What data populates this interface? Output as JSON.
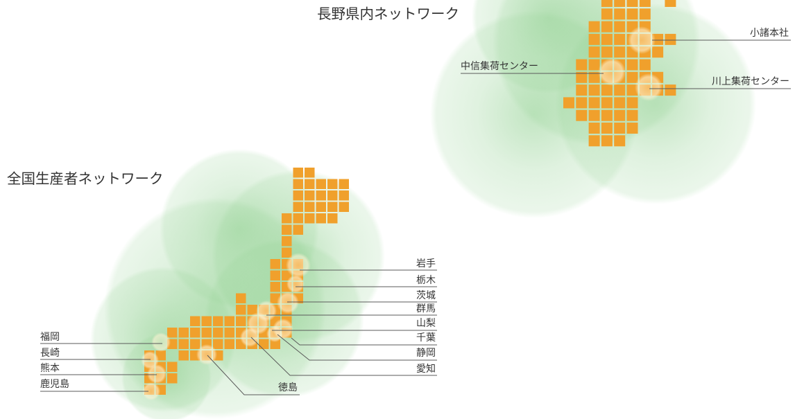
{
  "nagano": {
    "title": "長野県内ネットワーク",
    "locations": {
      "komoro": "小諸本社",
      "chushin": "中信集荷センター",
      "kawakami": "川上集荷センター"
    }
  },
  "national": {
    "title": "全国生産者ネットワーク",
    "prefectures": {
      "iwate": "岩手",
      "tochigi": "栃木",
      "ibaraki": "茨城",
      "gunma": "群馬",
      "yamanashi": "山梨",
      "chiba": "千葉",
      "shizuoka": "静岡",
      "aichi": "愛知",
      "tokushima": "徳島",
      "fukuoka": "福岡",
      "nagasaki": "長崎",
      "kumamoto": "熊本",
      "kagoshima": "鹿児島"
    }
  },
  "colors": {
    "tile": "#f0a02c",
    "glow": "#8fd08f",
    "highlight": "#fff4d6",
    "leader": "#5a5a5a",
    "text": "#333333"
  }
}
